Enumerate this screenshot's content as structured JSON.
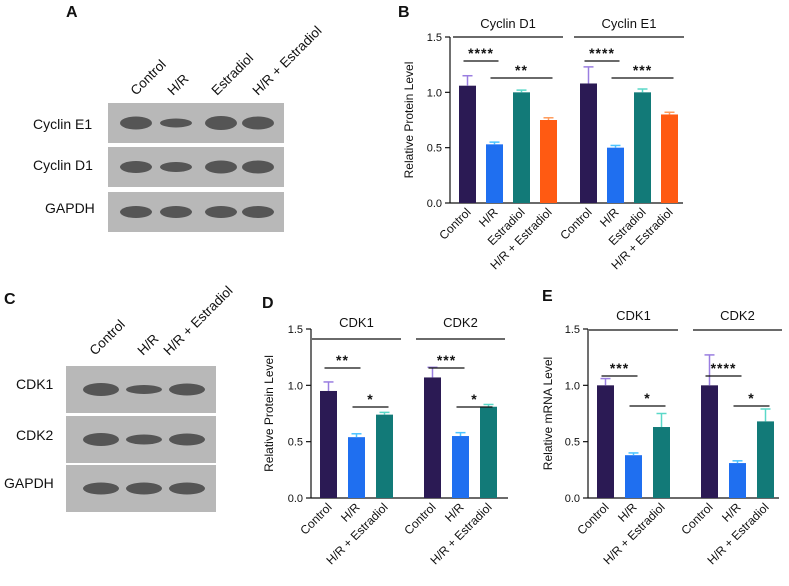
{
  "colors": {
    "control": "#2b1a54",
    "hr": "#1f6ff0",
    "estradiol": "#127a78",
    "hr_estradiol": "#ff5a12",
    "error_control": "#9a7ee0",
    "error_hr": "#4cc3ff",
    "error_estradiol": "#5ad8c8",
    "error_hr_estradiol": "#ff9a5a",
    "blot_bg": "#b8b8b8",
    "blot_band": "#4a4a4a"
  },
  "panels": {
    "A": {
      "letter": "A",
      "lane_labels": [
        "Control",
        "H/R",
        "Estradiol",
        "H/R + Estradiol"
      ],
      "row_labels": [
        "Cyclin E1",
        "Cyclin D1",
        "GAPDH"
      ]
    },
    "C": {
      "letter": "C",
      "lane_labels": [
        "Control",
        "H/R",
        "H/R + Estradiol"
      ],
      "row_labels": [
        "CDK1",
        "CDK2",
        "GAPDH"
      ]
    }
  },
  "chart_data": [
    {
      "panel": "B",
      "type": "bar",
      "ylabel": "Relative Protein Level",
      "ylim": [
        0,
        1.5
      ],
      "yticks": [
        "0.0",
        "0.5",
        "1.0",
        "1.5"
      ],
      "categories": [
        "Control",
        "H/R",
        "Estradiol",
        "H/R + Estradiol"
      ],
      "groups": [
        {
          "name": "Cyclin D1",
          "values": [
            1.06,
            0.53,
            1.0,
            0.75
          ],
          "errors": [
            0.09,
            0.02,
            0.02,
            0.02
          ],
          "significance": [
            {
              "from": 0,
              "to": 1,
              "label": "****"
            },
            {
              "from": 1,
              "to": 3,
              "label": "**"
            }
          ]
        },
        {
          "name": "Cyclin E1",
          "values": [
            1.08,
            0.5,
            1.0,
            0.8
          ],
          "errors": [
            0.15,
            0.02,
            0.03,
            0.02
          ],
          "significance": [
            {
              "from": 0,
              "to": 1,
              "label": "****"
            },
            {
              "from": 1,
              "to": 3,
              "label": "***"
            }
          ]
        }
      ],
      "colors": [
        "#2b1a54",
        "#1f6ff0",
        "#127a78",
        "#ff5a12"
      ]
    },
    {
      "panel": "D",
      "type": "bar",
      "ylabel": "Relative Protein Level",
      "ylim": [
        0,
        1.5
      ],
      "yticks": [
        "0.0",
        "0.5",
        "1.0",
        "1.5"
      ],
      "categories": [
        "Control",
        "H/R",
        "H/R + Estradiol"
      ],
      "groups": [
        {
          "name": "CDK1",
          "values": [
            0.95,
            0.54,
            0.74
          ],
          "errors": [
            0.08,
            0.03,
            0.02
          ],
          "significance": [
            {
              "from": 0,
              "to": 1,
              "label": "**"
            },
            {
              "from": 1,
              "to": 2,
              "label": "*"
            }
          ]
        },
        {
          "name": "CDK2",
          "values": [
            1.07,
            0.55,
            0.81
          ],
          "errors": [
            0.09,
            0.03,
            0.02
          ],
          "significance": [
            {
              "from": 0,
              "to": 1,
              "label": "***"
            },
            {
              "from": 1,
              "to": 2,
              "label": "*"
            }
          ]
        }
      ],
      "colors": [
        "#2b1a54",
        "#1f6ff0",
        "#127a78"
      ]
    },
    {
      "panel": "E",
      "type": "bar",
      "ylabel": "Relative mRNA Level",
      "ylim": [
        0,
        1.5
      ],
      "yticks": [
        "0.0",
        "0.5",
        "1.0",
        "1.5"
      ],
      "categories": [
        "Control",
        "H/R",
        "H/R + Estradiol"
      ],
      "groups": [
        {
          "name": "CDK1",
          "values": [
            1.0,
            0.38,
            0.63
          ],
          "errors": [
            0.06,
            0.02,
            0.12
          ],
          "significance": [
            {
              "from": 0,
              "to": 1,
              "label": "***"
            },
            {
              "from": 1,
              "to": 2,
              "label": "*"
            }
          ]
        },
        {
          "name": "CDK2",
          "values": [
            1.0,
            0.31,
            0.68
          ],
          "errors": [
            0.27,
            0.02,
            0.11
          ],
          "significance": [
            {
              "from": 0,
              "to": 1,
              "label": "****"
            },
            {
              "from": 1,
              "to": 2,
              "label": "*"
            }
          ]
        }
      ],
      "colors": [
        "#2b1a54",
        "#1f6ff0",
        "#127a78"
      ]
    }
  ]
}
